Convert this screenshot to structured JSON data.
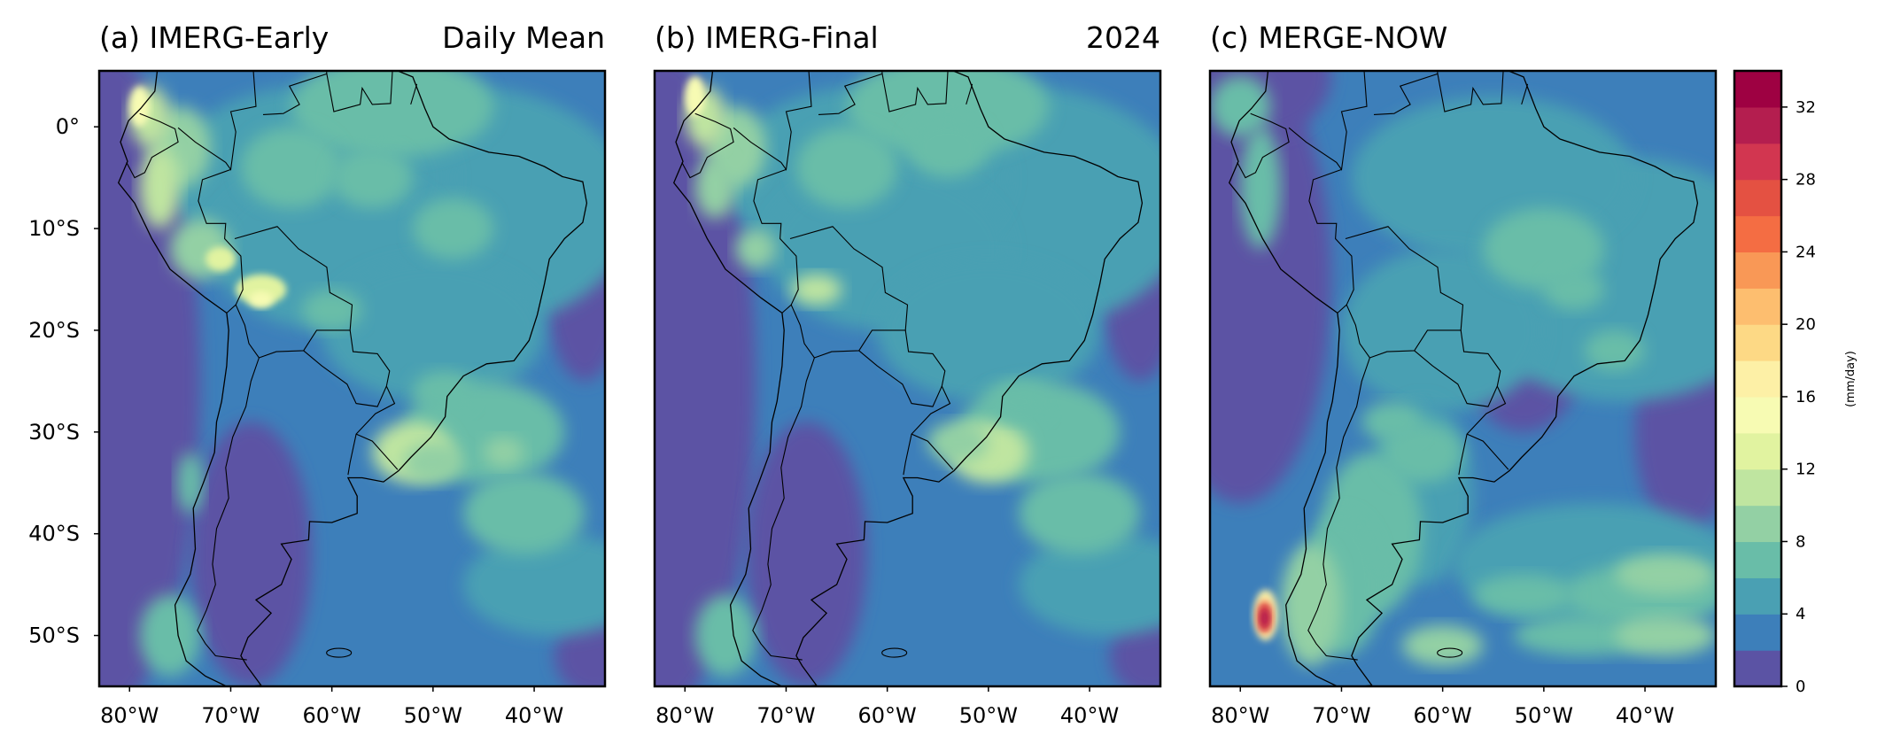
{
  "panels": [
    {
      "id": "a",
      "title_left": "(a) IMERG-Early",
      "title_right": "Daily Mean",
      "has_ylabels": true,
      "pattern": "early"
    },
    {
      "id": "b",
      "title_left": "(b) IMERG-Final",
      "title_right": "2024",
      "has_ylabels": false,
      "pattern": "final"
    },
    {
      "id": "c",
      "title_left": "(c) MERGE-NOW",
      "title_right": "",
      "has_ylabels": false,
      "pattern": "merge"
    }
  ],
  "axes": {
    "x_ticks": [
      "80°W",
      "70°W",
      "60°W",
      "50°W",
      "40°W"
    ],
    "x_tick_values": [
      -80,
      -70,
      -60,
      -50,
      -40
    ],
    "y_ticks": [
      "0°",
      "10°S",
      "20°S",
      "30°S",
      "40°S",
      "50°S"
    ],
    "y_tick_values": [
      0,
      -10,
      -20,
      -30,
      -40,
      -50
    ],
    "lon_range": [
      -83,
      -33
    ],
    "lat_range": [
      -55,
      5.5
    ]
  },
  "colorbar": {
    "label": "(mm/day)",
    "levels": [
      0,
      2,
      4,
      6,
      8,
      10,
      12,
      14,
      16,
      18,
      20,
      22,
      24,
      26,
      28,
      30,
      32,
      34
    ],
    "tick_labels": [
      "0",
      "4",
      "8",
      "12",
      "16",
      "20",
      "24",
      "28",
      "32"
    ],
    "tick_values": [
      0,
      4,
      8,
      12,
      16,
      20,
      24,
      28,
      32
    ],
    "colors": [
      "#5b53a4",
      "#3d7fba",
      "#4aa0b3",
      "#69bda8",
      "#93d0a4",
      "#bfe5a0",
      "#e1f3a0",
      "#f7fbb3",
      "#fdf0a6",
      "#fdd985",
      "#fdbe6f",
      "#f99856",
      "#f46d43",
      "#e45142",
      "#d23650",
      "#b41e4f",
      "#9e0142"
    ]
  }
}
